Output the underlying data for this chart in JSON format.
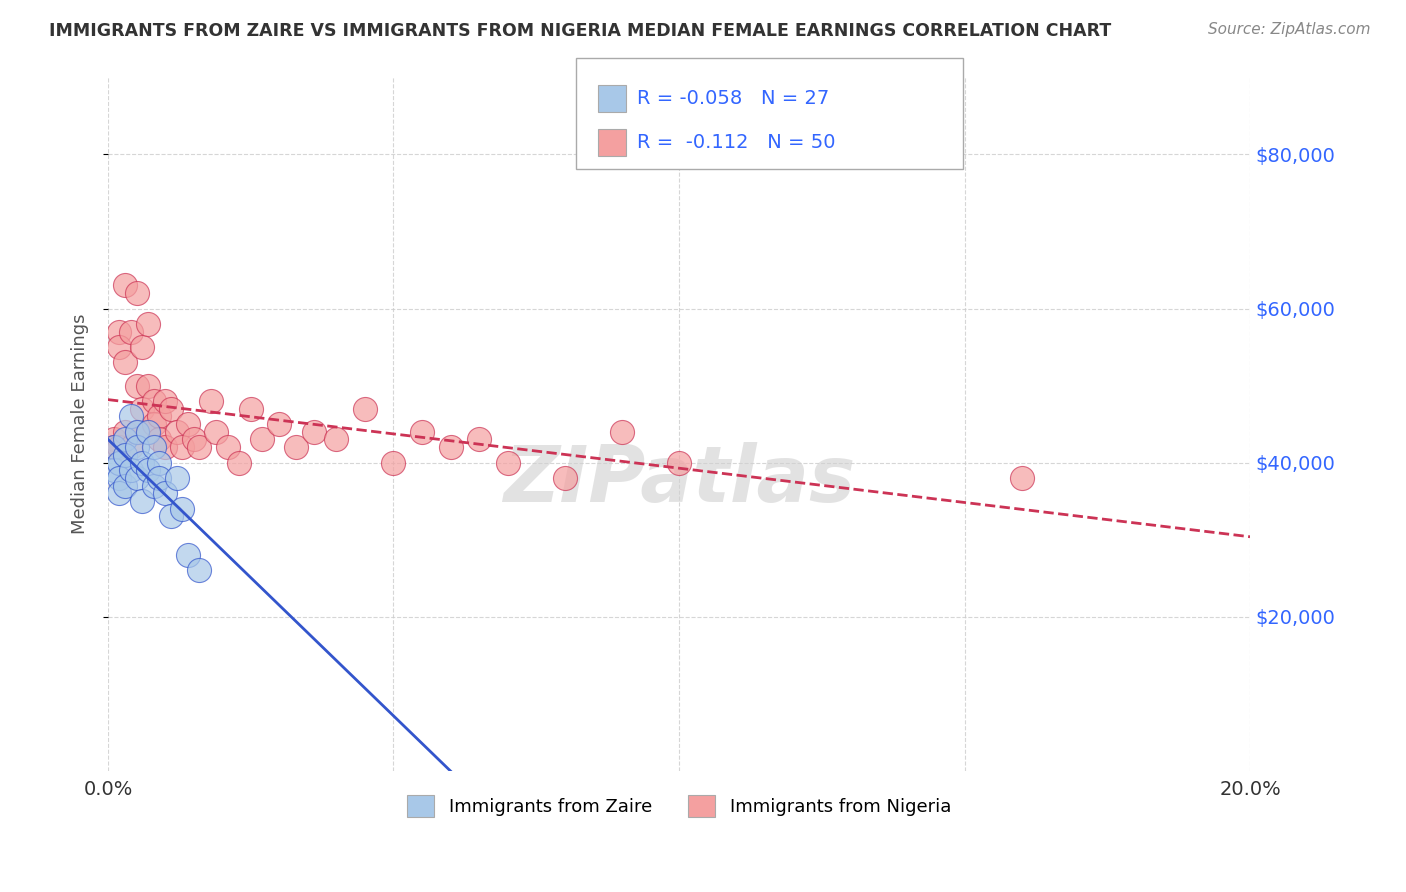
{
  "title": "IMMIGRANTS FROM ZAIRE VS IMMIGRANTS FROM NIGERIA MEDIAN FEMALE EARNINGS CORRELATION CHART",
  "source": "Source: ZipAtlas.com",
  "ylabel": "Median Female Earnings",
  "xlim": [
    0.0,
    0.2
  ],
  "ylim": [
    0,
    90000
  ],
  "yticks": [
    20000,
    40000,
    60000,
    80000
  ],
  "ytick_labels": [
    "$20,000",
    "$40,000",
    "$60,000",
    "$80,000"
  ],
  "xticks": [
    0.0,
    0.05,
    0.1,
    0.15,
    0.2
  ],
  "xtick_labels": [
    "0.0%",
    "",
    "",
    "",
    "20.0%"
  ],
  "legend_R_zaire": "-0.058",
  "legend_N_zaire": 27,
  "legend_R_nigeria": "-0.112",
  "legend_N_nigeria": 50,
  "zaire_color": "#a8c8e8",
  "nigeria_color": "#f4a0a0",
  "zaire_line_color": "#3355cc",
  "nigeria_line_color": "#cc3355",
  "watermark": "ZIPatlas",
  "background_color": "#ffffff",
  "zaire_points_x": [
    0.001,
    0.001,
    0.002,
    0.002,
    0.002,
    0.003,
    0.003,
    0.003,
    0.004,
    0.004,
    0.005,
    0.005,
    0.005,
    0.006,
    0.006,
    0.007,
    0.007,
    0.008,
    0.008,
    0.009,
    0.009,
    0.01,
    0.011,
    0.012,
    0.013,
    0.014,
    0.016
  ],
  "zaire_points_y": [
    42000,
    39000,
    40000,
    38000,
    36000,
    43000,
    41000,
    37000,
    46000,
    39000,
    44000,
    42000,
    38000,
    40000,
    35000,
    44000,
    39000,
    42000,
    37000,
    40000,
    38000,
    36000,
    33000,
    38000,
    34000,
    28000,
    26000
  ],
  "nigeria_points_x": [
    0.001,
    0.001,
    0.002,
    0.002,
    0.002,
    0.003,
    0.003,
    0.003,
    0.004,
    0.004,
    0.005,
    0.005,
    0.005,
    0.006,
    0.006,
    0.007,
    0.007,
    0.007,
    0.008,
    0.008,
    0.009,
    0.009,
    0.01,
    0.01,
    0.011,
    0.012,
    0.013,
    0.014,
    0.015,
    0.016,
    0.018,
    0.019,
    0.021,
    0.023,
    0.025,
    0.027,
    0.03,
    0.033,
    0.036,
    0.04,
    0.045,
    0.05,
    0.055,
    0.06,
    0.065,
    0.07,
    0.08,
    0.09,
    0.1,
    0.16
  ],
  "nigeria_points_y": [
    43000,
    42000,
    57000,
    55000,
    42000,
    63000,
    53000,
    44000,
    57000,
    42000,
    62000,
    50000,
    44000,
    55000,
    47000,
    58000,
    50000,
    44000,
    48000,
    45000,
    46000,
    43000,
    48000,
    42000,
    47000,
    44000,
    42000,
    45000,
    43000,
    42000,
    48000,
    44000,
    42000,
    40000,
    47000,
    43000,
    45000,
    42000,
    44000,
    43000,
    47000,
    40000,
    44000,
    42000,
    43000,
    40000,
    38000,
    44000,
    40000,
    38000
  ]
}
